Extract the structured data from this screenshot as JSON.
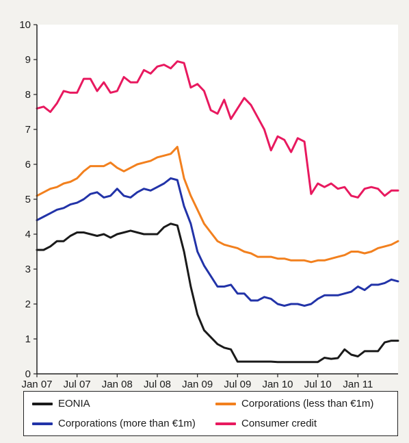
{
  "chart_data": {
    "type": "line",
    "title": "",
    "xlabel": "",
    "ylabel": "",
    "ylim": [
      0,
      10
    ],
    "xlim": [
      "2007-01",
      "2011-07"
    ],
    "yticks": [
      "0",
      "1",
      "2",
      "3",
      "4",
      "5",
      "6",
      "7",
      "8",
      "9",
      "10"
    ],
    "xticks": [
      "Jan 07",
      "Jul 07",
      "Jan 08",
      "Jul 08",
      "Jan 09",
      "Jul 09",
      "Jan 10",
      "Jul 10",
      "Jan 11"
    ],
    "grid": false,
    "legend_position": "bottom",
    "x": [
      "2007-01",
      "2007-02",
      "2007-03",
      "2007-04",
      "2007-05",
      "2007-06",
      "2007-07",
      "2007-08",
      "2007-09",
      "2007-10",
      "2007-11",
      "2007-12",
      "2008-01",
      "2008-02",
      "2008-03",
      "2008-04",
      "2008-05",
      "2008-06",
      "2008-07",
      "2008-08",
      "2008-09",
      "2008-10",
      "2008-11",
      "2008-12",
      "2009-01",
      "2009-02",
      "2009-03",
      "2009-04",
      "2009-05",
      "2009-06",
      "2009-07",
      "2009-08",
      "2009-09",
      "2009-10",
      "2009-11",
      "2009-12",
      "2010-01",
      "2010-02",
      "2010-03",
      "2010-04",
      "2010-05",
      "2010-06",
      "2010-07",
      "2010-08",
      "2010-09",
      "2010-10",
      "2010-11",
      "2010-12",
      "2011-01",
      "2011-02",
      "2011-03",
      "2011-04",
      "2011-05",
      "2011-06",
      "2011-07"
    ],
    "series": [
      {
        "name": "EONIA",
        "color": "#1a1a1a",
        "values": [
          3.55,
          3.55,
          3.65,
          3.8,
          3.8,
          3.95,
          4.05,
          4.05,
          4.0,
          3.95,
          4.0,
          3.9,
          4.0,
          4.05,
          4.1,
          4.05,
          4.0,
          4.0,
          4.0,
          4.2,
          4.3,
          4.25,
          3.5,
          2.5,
          1.7,
          1.25,
          1.05,
          0.85,
          0.75,
          0.7,
          0.35,
          0.35,
          0.35,
          0.35,
          0.35,
          0.35,
          0.34,
          0.34,
          0.34,
          0.34,
          0.34,
          0.34,
          0.34,
          0.46,
          0.43,
          0.45,
          0.7,
          0.55,
          0.5,
          0.65,
          0.65,
          0.65,
          0.9,
          0.95,
          0.95
        ]
      },
      {
        "name": "Corporations (less than €1m)",
        "color": "#f2801e",
        "values": [
          5.1,
          5.2,
          5.3,
          5.35,
          5.45,
          5.5,
          5.6,
          5.8,
          5.95,
          5.95,
          5.95,
          6.05,
          5.9,
          5.8,
          5.9,
          6.0,
          6.05,
          6.1,
          6.2,
          6.25,
          6.3,
          6.5,
          5.6,
          5.1,
          4.7,
          4.3,
          4.05,
          3.8,
          3.7,
          3.65,
          3.6,
          3.5,
          3.45,
          3.35,
          3.35,
          3.35,
          3.3,
          3.3,
          3.25,
          3.25,
          3.25,
          3.2,
          3.25,
          3.25,
          3.3,
          3.35,
          3.4,
          3.5,
          3.5,
          3.45,
          3.5,
          3.6,
          3.65,
          3.7,
          3.8
        ]
      },
      {
        "name": "Corporations (more than €1m)",
        "color": "#2233a8",
        "values": [
          4.4,
          4.5,
          4.6,
          4.7,
          4.75,
          4.85,
          4.9,
          5.0,
          5.15,
          5.2,
          5.05,
          5.1,
          5.3,
          5.1,
          5.05,
          5.2,
          5.3,
          5.25,
          5.35,
          5.45,
          5.6,
          5.55,
          4.8,
          4.3,
          3.5,
          3.1,
          2.8,
          2.5,
          2.5,
          2.55,
          2.3,
          2.3,
          2.1,
          2.1,
          2.2,
          2.15,
          2.0,
          1.95,
          2.0,
          2.0,
          1.95,
          2.0,
          2.15,
          2.25,
          2.25,
          2.25,
          2.3,
          2.35,
          2.5,
          2.4,
          2.55,
          2.55,
          2.6,
          2.7,
          2.65
        ]
      },
      {
        "name": "Consumer credit",
        "color": "#e8195f",
        "values": [
          7.6,
          7.65,
          7.5,
          7.75,
          8.1,
          8.05,
          8.05,
          8.45,
          8.45,
          8.1,
          8.35,
          8.05,
          8.1,
          8.5,
          8.35,
          8.35,
          8.7,
          8.6,
          8.8,
          8.85,
          8.75,
          8.95,
          8.9,
          8.2,
          8.3,
          8.1,
          7.55,
          7.45,
          7.85,
          7.3,
          7.6,
          7.9,
          7.7,
          7.35,
          7.0,
          6.4,
          6.8,
          6.7,
          6.35,
          6.75,
          6.65,
          5.15,
          5.45,
          5.35,
          5.45,
          5.3,
          5.35,
          5.1,
          5.05,
          5.3,
          5.35,
          5.3,
          5.1,
          5.25,
          5.25
        ]
      }
    ]
  },
  "legend": {
    "items": [
      {
        "label": "EONIA",
        "color": "#1a1a1a"
      },
      {
        "label": "Corporations (less than €1m)",
        "color": "#f2801e"
      },
      {
        "label": "Corporations (more than €1m)",
        "color": "#2233a8"
      },
      {
        "label": "Consumer credit",
        "color": "#e8195f"
      }
    ]
  }
}
